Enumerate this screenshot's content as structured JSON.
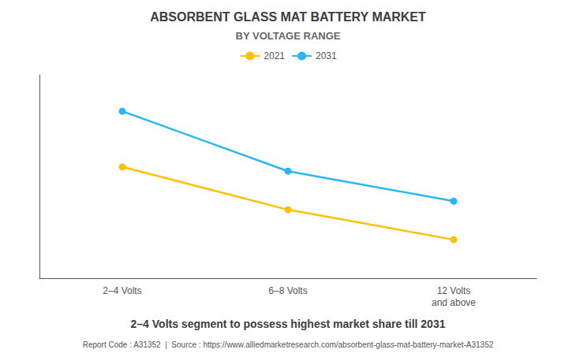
{
  "chart_data": {
    "type": "line",
    "title": "ABSORBENT GLASS MAT BATTERY MARKET",
    "subtitle": "BY VOLTAGE RANGE",
    "caption": "2–4 Volts segment to possess highest market share till 2031",
    "footer": "Report Code : A31352  |  Source : https://www.alliedmarketresearch.com/absorbent-glass-mat-battery-market-A31352",
    "categories": [
      "2–4 Volts",
      "6–8 Volts",
      "12 Volts\nand above"
    ],
    "series": [
      {
        "name": "2021",
        "color": "#FFC107",
        "values": [
          0.62,
          0.42,
          0.28
        ]
      },
      {
        "name": "2031",
        "color": "#29B6F6",
        "values": [
          0.88,
          0.6,
          0.46
        ]
      }
    ],
    "marker": "circle",
    "ylim": [
      0.1,
      1.05
    ],
    "yticks": [],
    "grid": false,
    "legend": "top",
    "tick_labels": "x"
  }
}
